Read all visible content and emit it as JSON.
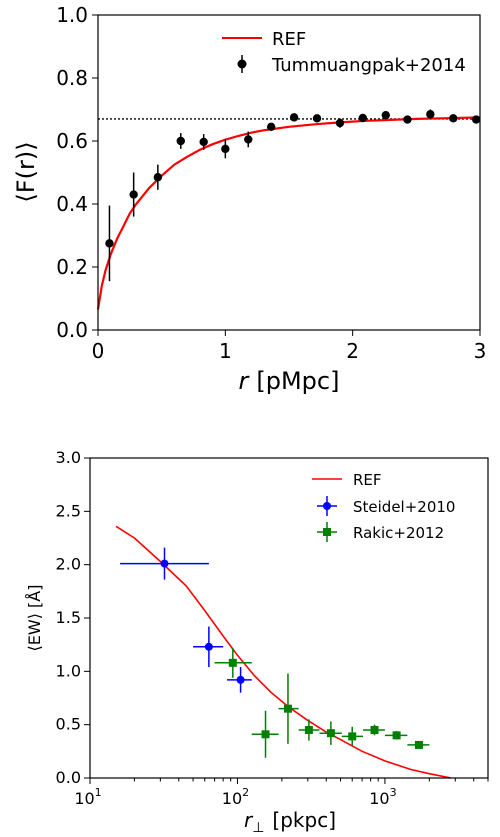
{
  "chart_data": [
    {
      "type": "scatter",
      "xlabel_var": "r",
      "xlabel_unit": "[pMpc]",
      "ylabel": "⟨F(r)⟩",
      "xlim": [
        0,
        3
      ],
      "ylim": [
        0,
        1.0
      ],
      "x_ticks": [
        0,
        1,
        2,
        3
      ],
      "y_ticks": [
        0.0,
        0.2,
        0.4,
        0.6,
        0.8,
        1.0
      ],
      "x_tick_labels": [
        "0",
        "1",
        "2",
        "3"
      ],
      "y_tick_labels": [
        "0.0",
        "0.2",
        "0.4",
        "0.6",
        "0.8",
        "1.0"
      ],
      "reference_level": 0.67,
      "legend_placement": "top-right",
      "series": [
        {
          "name": "REF",
          "kind": "line",
          "color": "#ff0000",
          "x": [
            0.0,
            0.03,
            0.06,
            0.1,
            0.15,
            0.2,
            0.25,
            0.3,
            0.4,
            0.5,
            0.6,
            0.7,
            0.8,
            0.9,
            1.0,
            1.1,
            1.2,
            1.3,
            1.5,
            1.7,
            1.9,
            2.1,
            2.3,
            2.5,
            2.7,
            2.9,
            3.0
          ],
          "y": [
            0.065,
            0.14,
            0.19,
            0.24,
            0.29,
            0.33,
            0.37,
            0.4,
            0.45,
            0.49,
            0.525,
            0.55,
            0.572,
            0.59,
            0.604,
            0.616,
            0.626,
            0.634,
            0.645,
            0.653,
            0.659,
            0.664,
            0.667,
            0.67,
            0.672,
            0.674,
            0.675
          ]
        },
        {
          "name": "Tummuangpak+2014",
          "kind": "errorbar",
          "color": "#000000",
          "points": [
            {
              "x": 0.09,
              "y": 0.275,
              "err": 0.12
            },
            {
              "x": 0.28,
              "y": 0.43,
              "err": 0.07
            },
            {
              "x": 0.47,
              "y": 0.485,
              "err": 0.04
            },
            {
              "x": 0.65,
              "y": 0.6,
              "err": 0.025
            },
            {
              "x": 0.83,
              "y": 0.597,
              "err": 0.025
            },
            {
              "x": 1.0,
              "y": 0.575,
              "err": 0.03
            },
            {
              "x": 1.18,
              "y": 0.605,
              "err": 0.025
            },
            {
              "x": 1.36,
              "y": 0.645,
              "err": 0.012
            },
            {
              "x": 1.54,
              "y": 0.675,
              "err": 0.012
            },
            {
              "x": 1.72,
              "y": 0.672,
              "err": 0.012
            },
            {
              "x": 1.9,
              "y": 0.657,
              "err": 0.015
            },
            {
              "x": 2.08,
              "y": 0.673,
              "err": 0.01
            },
            {
              "x": 2.26,
              "y": 0.682,
              "err": 0.01
            },
            {
              "x": 2.43,
              "y": 0.668,
              "err": 0.01
            },
            {
              "x": 2.61,
              "y": 0.685,
              "err": 0.015
            },
            {
              "x": 2.79,
              "y": 0.672,
              "err": 0.01
            },
            {
              "x": 2.97,
              "y": 0.668,
              "err": 0.01
            }
          ]
        }
      ]
    },
    {
      "type": "scatter",
      "xscale": "log",
      "xlabel_var": "r",
      "xlabel_sub": "⊥",
      "xlabel_unit": "[pkpc]",
      "ylabel": "⟨EW⟩ [Å]",
      "xlim": [
        10,
        5000
      ],
      "ylim": [
        0,
        3.0
      ],
      "x_tick_labels": [
        "10",
        "10",
        "10"
      ],
      "x_tick_exponents": [
        "1",
        "2",
        "3"
      ],
      "y_ticks": [
        0.0,
        0.5,
        1.0,
        1.5,
        2.0,
        2.5,
        3.0
      ],
      "y_tick_labels": [
        "0.0",
        "0.5",
        "1.0",
        "1.5",
        "2.0",
        "2.5",
        "3.0"
      ],
      "legend_placement": "top-right",
      "series": [
        {
          "name": "REF",
          "kind": "line",
          "color": "#ff0000",
          "x": [
            15,
            20,
            30,
            45,
            60,
            80,
            100,
            130,
            170,
            220,
            300,
            400,
            500,
            700,
            1000,
            1500,
            2000,
            2800
          ],
          "y": [
            2.36,
            2.25,
            2.03,
            1.8,
            1.57,
            1.33,
            1.15,
            0.96,
            0.8,
            0.67,
            0.54,
            0.43,
            0.36,
            0.25,
            0.16,
            0.08,
            0.04,
            0.0
          ]
        },
        {
          "name": "Steidel+2010",
          "kind": "errorbar",
          "color": "#0000ff",
          "marker": "circle",
          "points": [
            {
              "x": 32,
              "y": 2.01,
              "xerr": [
                16,
                64
              ],
              "err": 0.15
            },
            {
              "x": 64,
              "y": 1.23,
              "xerr": [
                50,
                80
              ],
              "err": 0.19
            },
            {
              "x": 105,
              "y": 0.92,
              "xerr": [
                85,
                125
              ],
              "err": 0.12
            }
          ]
        },
        {
          "name": "Rakic+2012",
          "kind": "errorbar",
          "color": "#008000",
          "marker": "square",
          "points": [
            {
              "x": 93,
              "y": 1.08,
              "xerr": [
                70,
                125
              ],
              "err": 0.14
            },
            {
              "x": 155,
              "y": 0.41,
              "xerr": [
                125,
                190
              ],
              "err": 0.22
            },
            {
              "x": 220,
              "y": 0.65,
              "xerr": [
                190,
                260
              ],
              "err": 0.33
            },
            {
              "x": 305,
              "y": 0.45,
              "xerr": [
                260,
                360
              ],
              "err": 0.1
            },
            {
              "x": 430,
              "y": 0.42,
              "xerr": [
                360,
                510
              ],
              "err": 0.11
            },
            {
              "x": 600,
              "y": 0.39,
              "xerr": [
                510,
                710
              ],
              "err": 0.09
            },
            {
              "x": 850,
              "y": 0.45,
              "xerr": [
                710,
                1000
              ],
              "err": 0.05
            },
            {
              "x": 1200,
              "y": 0.4,
              "xerr": [
                1000,
                1420
              ],
              "err": 0.04
            },
            {
              "x": 1700,
              "y": 0.31,
              "xerr": [
                1420,
                2000
              ],
              "err": 0.03
            }
          ]
        }
      ]
    }
  ]
}
